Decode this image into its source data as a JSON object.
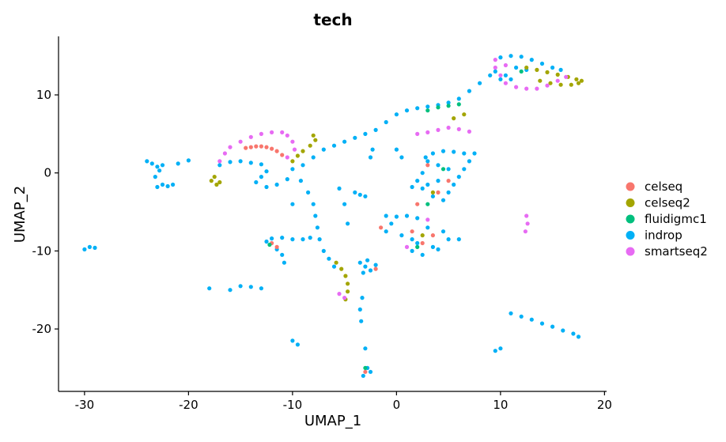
{
  "chart_data": {
    "type": "scatter",
    "title": "tech",
    "xlabel": "UMAP_1",
    "ylabel": "UMAP_2",
    "xlim": [
      -32.5,
      20.2
    ],
    "ylim": [
      -28.0,
      17.5
    ],
    "xticks": [
      -30,
      -20,
      -10,
      0,
      10,
      20
    ],
    "yticks": [
      -20,
      -10,
      0,
      10
    ],
    "grid": false,
    "legend_position": "right",
    "series": [
      {
        "name": "celseq",
        "color": "#F8766D",
        "points": [
          [
            -14.5,
            3.2
          ],
          [
            -14.0,
            3.3
          ],
          [
            -13.5,
            3.4
          ],
          [
            -13.0,
            3.4
          ],
          [
            -12.5,
            3.3
          ],
          [
            -12.0,
            3.1
          ],
          [
            -11.5,
            2.8
          ],
          [
            -11.0,
            2.3
          ],
          [
            -12.0,
            -9.0
          ],
          [
            -11.5,
            -9.5
          ],
          [
            1.5,
            -7.5
          ],
          [
            2.5,
            -9.0
          ],
          [
            3.0,
            1.0
          ],
          [
            4.0,
            -2.5
          ],
          [
            -1.5,
            -7.0
          ],
          [
            -2.0,
            -12.3
          ],
          [
            5.0,
            -1.0
          ],
          [
            2.0,
            -4.0
          ],
          [
            -3.0,
            -25.5
          ],
          [
            3.5,
            -8.0
          ]
        ]
      },
      {
        "name": "celseq2",
        "color": "#A3A500",
        "points": [
          [
            -17.5,
            -0.5
          ],
          [
            -17.8,
            -1.0
          ],
          [
            -17.3,
            -1.5
          ],
          [
            -17.0,
            -1.2
          ],
          [
            -8.0,
            4.8
          ],
          [
            -7.8,
            4.2
          ],
          [
            -8.3,
            3.5
          ],
          [
            -9.0,
            2.8
          ],
          [
            -9.5,
            2.2
          ],
          [
            -10.0,
            1.5
          ],
          [
            -5.8,
            -11.5
          ],
          [
            -5.3,
            -12.3
          ],
          [
            -4.9,
            -13.2
          ],
          [
            -4.7,
            -14.2
          ],
          [
            -4.7,
            -15.2
          ],
          [
            -4.9,
            -16.2
          ],
          [
            12.5,
            13.5
          ],
          [
            13.5,
            13.2
          ],
          [
            14.5,
            12.9
          ],
          [
            15.5,
            12.6
          ],
          [
            16.5,
            12.3
          ],
          [
            17.3,
            12.0
          ],
          [
            17.8,
            11.8
          ],
          [
            17.5,
            11.5
          ],
          [
            16.8,
            11.3
          ],
          [
            15.8,
            11.3
          ],
          [
            14.8,
            11.5
          ],
          [
            13.8,
            11.8
          ],
          [
            6.5,
            7.5
          ],
          [
            5.5,
            7.0
          ],
          [
            3.5,
            -2.5
          ],
          [
            2.5,
            -8.0
          ]
        ]
      },
      {
        "name": "fluidigmc1",
        "color": "#00BF7D",
        "points": [
          [
            6.0,
            8.8
          ],
          [
            5.0,
            8.6
          ],
          [
            4.0,
            8.4
          ],
          [
            3.0,
            8.0
          ],
          [
            -12.2,
            -9.2
          ],
          [
            2.0,
            -9.5
          ],
          [
            3.0,
            -4.0
          ],
          [
            4.5,
            0.5
          ],
          [
            12.0,
            13.0
          ],
          [
            -3.0,
            -25.0
          ]
        ]
      },
      {
        "name": "indrop",
        "color": "#00B0F6",
        "points": [
          [
            -24.0,
            1.5
          ],
          [
            -23.5,
            1.2
          ],
          [
            -23.0,
            0.8
          ],
          [
            -22.5,
            1.0
          ],
          [
            -22.8,
            0.3
          ],
          [
            -23.2,
            -0.5
          ],
          [
            -22.5,
            -1.5
          ],
          [
            -23.0,
            -1.8
          ],
          [
            -22.0,
            -1.7
          ],
          [
            -21.5,
            -1.5
          ],
          [
            -21.0,
            1.2
          ],
          [
            -20.0,
            1.6
          ],
          [
            -29.5,
            -9.5
          ],
          [
            -30.0,
            -9.8
          ],
          [
            -29.0,
            -9.6
          ],
          [
            -17.0,
            1.0
          ],
          [
            -16.0,
            1.4
          ],
          [
            -15.0,
            1.5
          ],
          [
            -14.0,
            1.3
          ],
          [
            -13.0,
            1.1
          ],
          [
            -12.5,
            0.2
          ],
          [
            -13.0,
            -0.5
          ],
          [
            -13.5,
            -1.2
          ],
          [
            -12.5,
            -1.8
          ],
          [
            -11.5,
            -1.5
          ],
          [
            -10.5,
            -0.8
          ],
          [
            -10.0,
            0.5
          ],
          [
            -9.2,
            -1.0
          ],
          [
            -8.5,
            -2.5
          ],
          [
            -8.0,
            -4.0
          ],
          [
            -7.8,
            -5.5
          ],
          [
            -7.6,
            -7.0
          ],
          [
            -7.4,
            -8.5
          ],
          [
            -7.0,
            -10.0
          ],
          [
            -6.5,
            -11.0
          ],
          [
            -6.0,
            -12.0
          ],
          [
            -10.0,
            -4.0
          ],
          [
            -9.0,
            1.0
          ],
          [
            -8.0,
            2.0
          ],
          [
            -7.0,
            3.0
          ],
          [
            -6.0,
            3.5
          ],
          [
            -5.0,
            4.0
          ],
          [
            -4.0,
            4.5
          ],
          [
            -3.0,
            5.0
          ],
          [
            -2.0,
            5.5
          ],
          [
            -1.0,
            6.5
          ],
          [
            0.0,
            7.5
          ],
          [
            1.0,
            8.0
          ],
          [
            2.0,
            8.3
          ],
          [
            3.0,
            8.5
          ],
          [
            4.0,
            8.7
          ],
          [
            5.0,
            9.0
          ],
          [
            6.0,
            9.5
          ],
          [
            7.0,
            10.5
          ],
          [
            8.0,
            11.5
          ],
          [
            9.0,
            12.5
          ],
          [
            9.5,
            13.0
          ],
          [
            10.0,
            14.8
          ],
          [
            11.0,
            15.0
          ],
          [
            12.0,
            14.9
          ],
          [
            13.0,
            14.5
          ],
          [
            14.0,
            14.0
          ],
          [
            15.0,
            13.5
          ],
          [
            15.8,
            13.2
          ],
          [
            11.5,
            13.5
          ],
          [
            12.5,
            13.2
          ],
          [
            10.5,
            12.5
          ],
          [
            11.0,
            12.0
          ],
          [
            10.0,
            12.0
          ],
          [
            -8.3,
            -8.3
          ],
          [
            -9.0,
            -8.5
          ],
          [
            -10.0,
            -8.5
          ],
          [
            -11.0,
            -8.3
          ],
          [
            -12.0,
            -8.4
          ],
          [
            -12.5,
            -8.8
          ],
          [
            -11.5,
            -9.8
          ],
          [
            -11.0,
            -10.5
          ],
          [
            -10.8,
            -11.5
          ],
          [
            -3.5,
            -11.5
          ],
          [
            -3.0,
            -12.0
          ],
          [
            -2.5,
            -12.5
          ],
          [
            -2.0,
            -11.8
          ],
          [
            -3.2,
            -12.8
          ],
          [
            -2.8,
            -11.2
          ],
          [
            -1.0,
            -5.5
          ],
          [
            0.0,
            -5.6
          ],
          [
            1.0,
            -5.5
          ],
          [
            2.0,
            -5.8
          ],
          [
            -0.5,
            -6.5
          ],
          [
            -1.0,
            -7.5
          ],
          [
            0.5,
            -8.0
          ],
          [
            1.5,
            -8.5
          ],
          [
            2.0,
            -9.0
          ],
          [
            1.5,
            -10.0
          ],
          [
            2.5,
            -10.5
          ],
          [
            3.5,
            -9.5
          ],
          [
            4.0,
            -9.8
          ],
          [
            5.0,
            -8.5
          ],
          [
            6.0,
            -8.5
          ],
          [
            4.5,
            -7.5
          ],
          [
            3.0,
            -7.0
          ],
          [
            2.8,
            2.0
          ],
          [
            3.5,
            2.5
          ],
          [
            4.5,
            2.8
          ],
          [
            5.5,
            2.7
          ],
          [
            6.5,
            2.5
          ],
          [
            7.5,
            2.5
          ],
          [
            7.0,
            1.5
          ],
          [
            6.5,
            0.5
          ],
          [
            6.0,
            -0.5
          ],
          [
            5.5,
            -1.5
          ],
          [
            5.0,
            -2.5
          ],
          [
            4.5,
            -3.5
          ],
          [
            3.5,
            -3.0
          ],
          [
            2.5,
            -2.0
          ],
          [
            2.5,
            0.0
          ],
          [
            3.0,
            1.5
          ],
          [
            4.0,
            1.0
          ],
          [
            5.0,
            0.5
          ],
          [
            4.0,
            -1.0
          ],
          [
            3.0,
            -1.5
          ],
          [
            2.0,
            -1.0
          ],
          [
            1.5,
            -1.8
          ],
          [
            -4.0,
            -2.5
          ],
          [
            -3.5,
            -2.8
          ],
          [
            -3.0,
            -3.0
          ],
          [
            -5.5,
            -2.0
          ],
          [
            0.0,
            3.0
          ],
          [
            0.5,
            2.0
          ],
          [
            -2.5,
            2.0
          ],
          [
            -2.3,
            3.0
          ],
          [
            -16.0,
            -15.0
          ],
          [
            -15.0,
            -14.5
          ],
          [
            -14.0,
            -14.6
          ],
          [
            -13.0,
            -14.8
          ],
          [
            -2.5,
            -25.5
          ],
          [
            -2.8,
            -25.0
          ],
          [
            -3.2,
            -26.0
          ],
          [
            -3.3,
            -16.0
          ],
          [
            -3.5,
            -17.5
          ],
          [
            -3.4,
            -19.0
          ],
          [
            -10.0,
            -21.5
          ],
          [
            -9.5,
            -22.0
          ],
          [
            -3.0,
            -22.5
          ],
          [
            11.0,
            -18.0
          ],
          [
            12.0,
            -18.4
          ],
          [
            13.0,
            -18.8
          ],
          [
            14.0,
            -19.3
          ],
          [
            15.0,
            -19.7
          ],
          [
            16.0,
            -20.2
          ],
          [
            17.0,
            -20.6
          ],
          [
            17.5,
            -21.0
          ],
          [
            9.5,
            -22.8
          ],
          [
            10.0,
            -22.5
          ],
          [
            -18.0,
            -14.8
          ],
          [
            -4.7,
            -6.5
          ],
          [
            -5.0,
            -4.0
          ]
        ]
      },
      {
        "name": "smartseq2",
        "color": "#E76BF3",
        "points": [
          [
            -17.0,
            1.5
          ],
          [
            -16.5,
            2.5
          ],
          [
            -16.0,
            3.3
          ],
          [
            -15.0,
            4.0
          ],
          [
            -14.0,
            4.6
          ],
          [
            -13.0,
            5.0
          ],
          [
            -12.0,
            5.2
          ],
          [
            -11.0,
            5.2
          ],
          [
            -10.5,
            4.8
          ],
          [
            -10.0,
            4.0
          ],
          [
            -9.8,
            3.0
          ],
          [
            -10.5,
            2.0
          ],
          [
            9.5,
            14.5
          ],
          [
            9.5,
            13.5
          ],
          [
            10.0,
            12.5
          ],
          [
            10.5,
            11.5
          ],
          [
            11.5,
            11.0
          ],
          [
            12.5,
            10.8
          ],
          [
            13.5,
            10.8
          ],
          [
            14.5,
            11.2
          ],
          [
            15.5,
            11.8
          ],
          [
            16.3,
            12.3
          ],
          [
            5.0,
            5.8
          ],
          [
            6.0,
            5.6
          ],
          [
            7.0,
            5.3
          ],
          [
            2.0,
            5.0
          ],
          [
            3.0,
            5.2
          ],
          [
            4.0,
            5.5
          ],
          [
            12.5,
            -5.5
          ],
          [
            12.6,
            -6.5
          ],
          [
            12.4,
            -7.5
          ],
          [
            -5.0,
            -16.0
          ],
          [
            -5.5,
            -15.5
          ],
          [
            10.5,
            13.8
          ],
          [
            1.0,
            -9.5
          ],
          [
            3.0,
            -6.0
          ]
        ]
      }
    ]
  }
}
